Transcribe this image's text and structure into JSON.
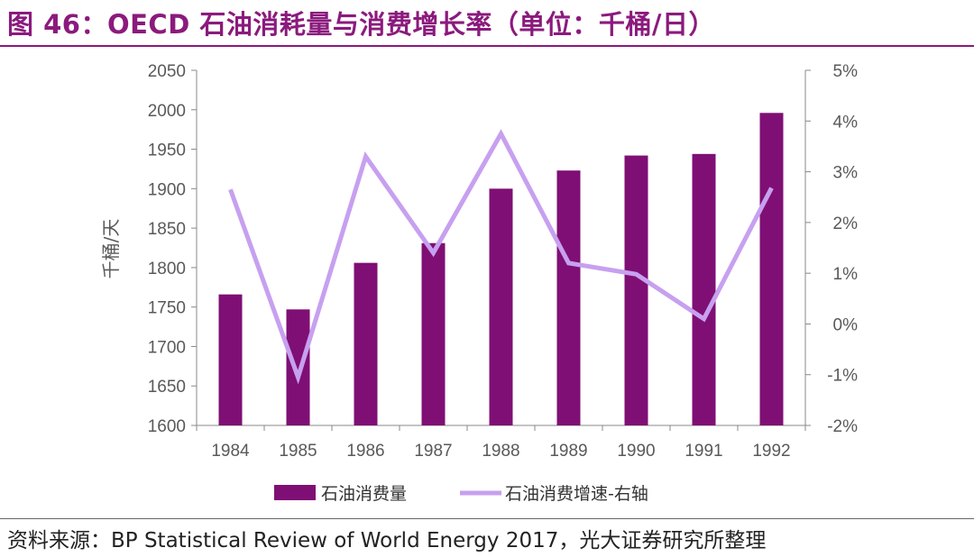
{
  "header": {
    "title": "图 46：OECD 石油消耗量与消费增长率（单位：千桶/日）"
  },
  "footer": {
    "source": "资料来源：BP Statistical Review of World Energy 2017，光大证券研究所整理"
  },
  "colors": {
    "bar": "#7f0f74",
    "line": "#c7a0f0",
    "accent": "#8b1a7d"
  },
  "chart_data": {
    "type": "bar",
    "categories": [
      "1984",
      "1985",
      "1986",
      "1987",
      "1988",
      "1989",
      "1990",
      "1991",
      "1992"
    ],
    "series": [
      {
        "name": "石油消费量",
        "type": "bar",
        "axis": "left",
        "values": [
          1766,
          1747,
          1806,
          1831,
          1900,
          1923,
          1942,
          1944,
          1996
        ]
      },
      {
        "name": "石油消费增速-右轴",
        "type": "line",
        "axis": "right",
        "values": [
          2.65,
          -1.05,
          3.3,
          1.4,
          3.75,
          1.2,
          0.98,
          0.1,
          2.68
        ]
      }
    ],
    "ylabel": "千桶/天",
    "ylim": [
      1600,
      2050
    ],
    "yticks": [
      "1600",
      "1650",
      "1700",
      "1750",
      "1800",
      "1850",
      "1900",
      "1950",
      "2000",
      "2050"
    ],
    "y2lim": [
      -2,
      5
    ],
    "y2ticks": [
      "-2%",
      "-1%",
      "0%",
      "1%",
      "2%",
      "3%",
      "4%",
      "5%"
    ],
    "legend_position": "bottom",
    "grid": false
  }
}
